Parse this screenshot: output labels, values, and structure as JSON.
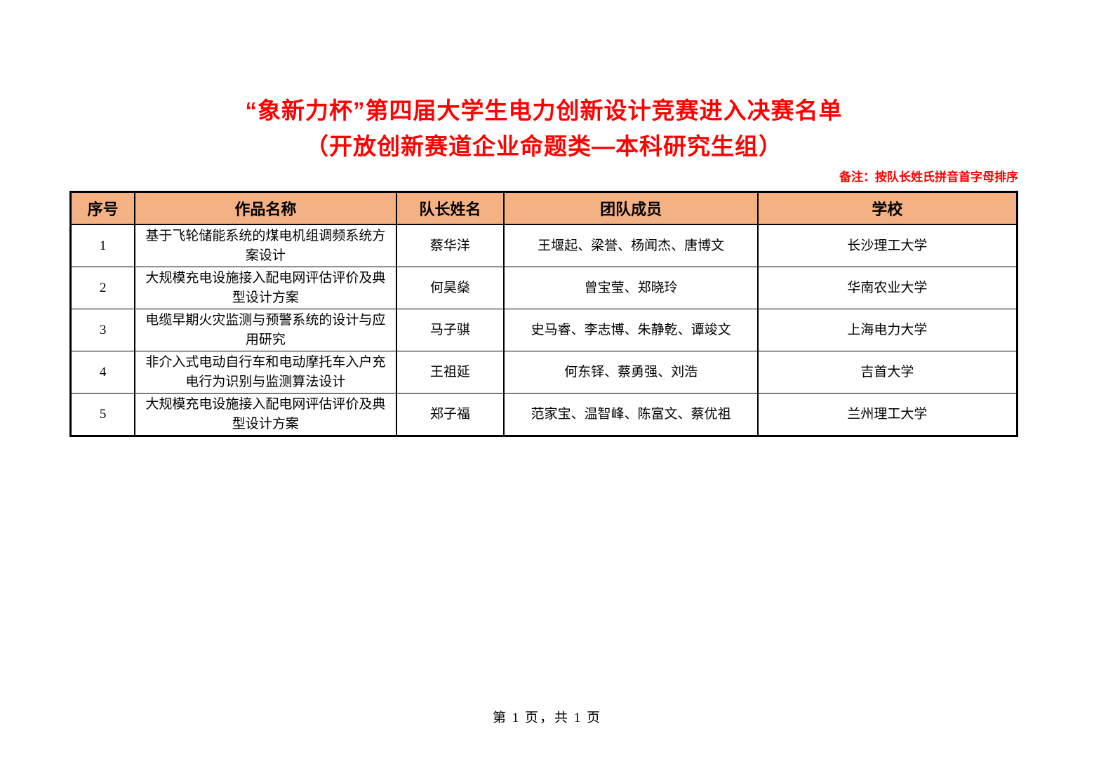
{
  "page": {
    "title_line1": "“象新力杯”第四届大学生电力创新设计竞赛进入决赛名单",
    "title_line2": "（开放创新赛道企业命题类—本科研究生组）",
    "note": "备注：按队长姓氏拼音首字母排序",
    "footer": "第 1 页，共 1 页"
  },
  "colors": {
    "title_red": "#FF0000",
    "note_red": "#FF0000",
    "header_bg": "#F4B183",
    "border_black": "#000000"
  },
  "table": {
    "headers": [
      "序号",
      "作品名称",
      "队长姓名",
      "团队成员",
      "学校"
    ],
    "rows": [
      {
        "no": "1",
        "work": "基于飞轮储能系统的煤电机组调频系统方案设计",
        "leader": "蔡华洋",
        "members": "王堰起、梁誉、杨闻杰、唐博文",
        "school": "长沙理工大学"
      },
      {
        "no": "2",
        "work": "大规模充电设施接入配电网评估评价及典型设计方案",
        "leader": "何昊燊",
        "members": "曾宝莹、郑晓玲",
        "school": "华南农业大学"
      },
      {
        "no": "3",
        "work": "电缆早期火灾监测与预警系统的设计与应用研究",
        "leader": "马子骐",
        "members": "史马睿、李志博、朱静乾、谭竣文",
        "school": "上海电力大学"
      },
      {
        "no": "4",
        "work": "非介入式电动自行车和电动摩托车入户充电行为识别与监测算法设计",
        "leader": "王祖延",
        "members": "何东铎、蔡勇强、刘浩",
        "school": "吉首大学"
      },
      {
        "no": "5",
        "work": "大规模充电设施接入配电网评估评价及典型设计方案",
        "leader": "郑子福",
        "members": "范家宝、温智峰、陈富文、蔡优祖",
        "school": "兰州理工大学"
      }
    ]
  }
}
